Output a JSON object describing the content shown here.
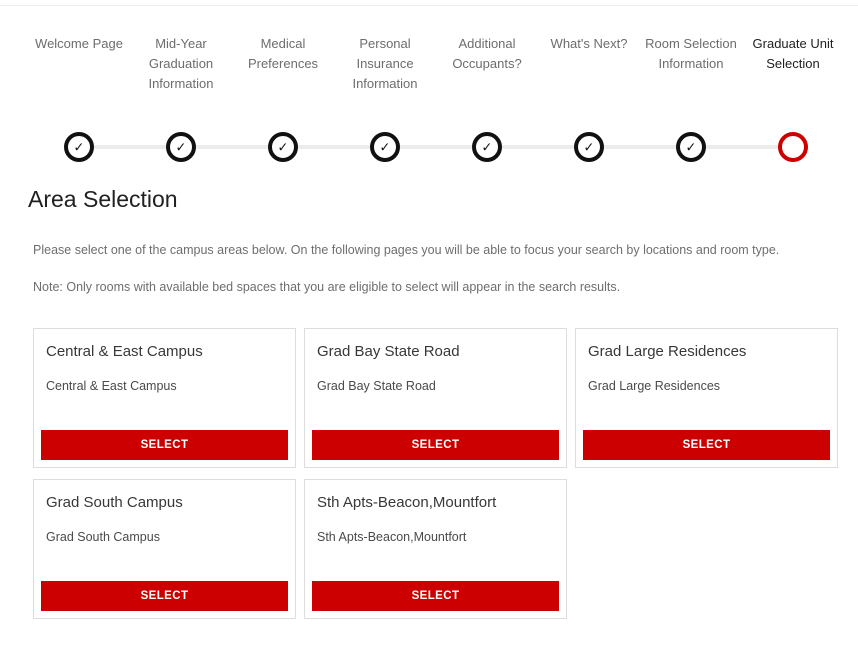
{
  "page": {
    "heading": "Area Selection",
    "intro": "Please select one of the campus areas below. On the following pages you will be able to focus your search by locations and room type.",
    "note": "Note: Only rooms with available bed spaces that you are eligible to select will appear in the search results."
  },
  "stepper": {
    "check_icon": "✓",
    "steps": [
      {
        "label": "Welcome Page",
        "state": "complete"
      },
      {
        "label": "Mid-Year Graduation Information",
        "state": "complete"
      },
      {
        "label": "Medical Preferences",
        "state": "complete"
      },
      {
        "label": "Personal Insurance Information",
        "state": "complete"
      },
      {
        "label": "Additional Occupants?",
        "state": "complete"
      },
      {
        "label": "What's Next?",
        "state": "complete"
      },
      {
        "label": "Room Selection Information",
        "state": "complete"
      },
      {
        "label": "Graduate Unit Selection",
        "state": "current"
      }
    ]
  },
  "areas": [
    {
      "title": "Central & East Campus",
      "description": "Central & East Campus",
      "button_label": "SELECT"
    },
    {
      "title": "Grad Bay State Road",
      "description": "Grad Bay State Road",
      "button_label": "SELECT"
    },
    {
      "title": "Grad Large Residences",
      "description": "Grad Large Residences",
      "button_label": "SELECT"
    },
    {
      "title": "Grad South Campus",
      "description": "Grad South Campus",
      "button_label": "SELECT"
    },
    {
      "title": "Sth Apts-Beacon,Mountfort",
      "description": "Sth Apts-Beacon,Mountfort",
      "button_label": "SELECT"
    }
  ],
  "colors": {
    "accent_red": "#cc0000",
    "step_complete_ring": "#111111",
    "step_current_ring": "#cc0000",
    "connector_line": "#ececec",
    "card_border": "#dddddd"
  }
}
